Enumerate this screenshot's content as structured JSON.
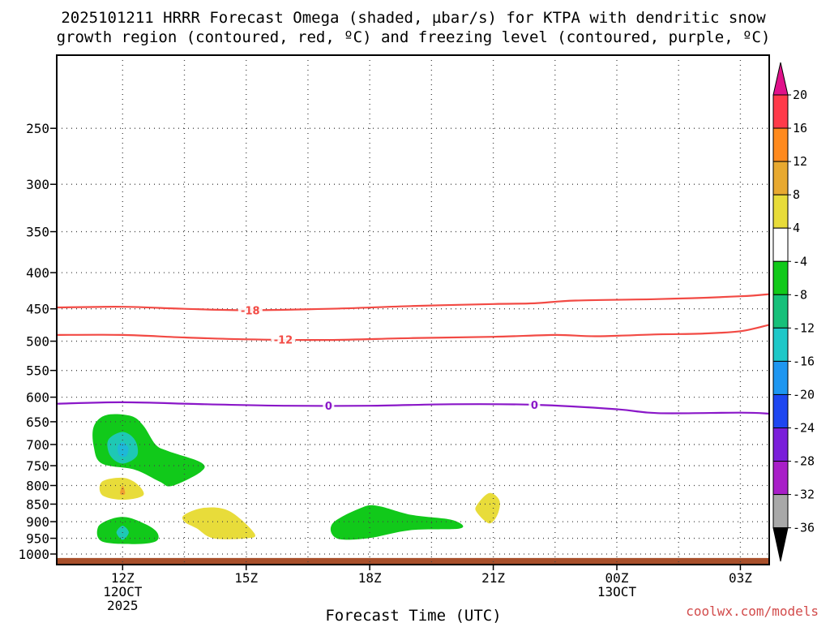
{
  "chart_data": {
    "type": "contour",
    "title_line1": "2025101211 HRRR Forecast Omega (shaded, µbar/s) for KTPA with dendritic snow",
    "title_line2": "growth region (contoured, red, ºC) and freezing level (contoured, purple, ºC)",
    "xlabel": "Forecast Time (UTC)",
    "credit": "coolwx.com/models",
    "x_unit": "hours since 12Z 12OCT",
    "xlim": [
      -1.6,
      15.7
    ],
    "ylim": [
      1035,
      197
    ],
    "y_ticks": [
      250,
      300,
      350,
      400,
      450,
      500,
      550,
      600,
      650,
      700,
      750,
      800,
      850,
      900,
      950,
      1000
    ],
    "x_ticks": [
      {
        "x": 0,
        "lines": [
          "12Z",
          "12OCT",
          "2025"
        ]
      },
      {
        "x": 3,
        "lines": [
          "15Z"
        ]
      },
      {
        "x": 6,
        "lines": [
          "18Z"
        ]
      },
      {
        "x": 9,
        "lines": [
          "21Z"
        ]
      },
      {
        "x": 12,
        "lines": [
          "00Z",
          "13OCT"
        ]
      },
      {
        "x": 15,
        "lines": [
          "03Z"
        ]
      }
    ],
    "colorbar": {
      "labels": [
        "20",
        "16",
        "12",
        "8",
        "4",
        "-4",
        "-8",
        "-12",
        "-16",
        "-20",
        "-24",
        "-28",
        "-32",
        "-36"
      ],
      "colors": [
        "#ff3a4a",
        "#ff8a1e",
        "#e8a930",
        "#e8dc3a",
        "#ffffff",
        "#11c91a",
        "#16c07a",
        "#1ec8c8",
        "#1e96f0",
        "#1e46f0",
        "#7a1eda",
        "#a81ec8",
        "#a8a8a8"
      ],
      "top_arrow_color": "#e0118a",
      "bottom_arrow_color": "#000000"
    },
    "contours": [
      {
        "name": "dgz-18",
        "label": "-18",
        "color": "#f24a44",
        "label_x": 3.1,
        "points": [
          [
            -1.6,
            448
          ],
          [
            0,
            447
          ],
          [
            1.5,
            450
          ],
          [
            3,
            452
          ],
          [
            5,
            450
          ],
          [
            7,
            446
          ],
          [
            9,
            443
          ],
          [
            10,
            442
          ],
          [
            11,
            438
          ],
          [
            13,
            436
          ],
          [
            15,
            432
          ],
          [
            15.7,
            429
          ]
        ]
      },
      {
        "name": "dgz-12",
        "label": "-12",
        "color": "#f24a44",
        "label_x": 3.9,
        "points": [
          [
            -1.6,
            490
          ],
          [
            0,
            490
          ],
          [
            1.5,
            494
          ],
          [
            3,
            497
          ],
          [
            5,
            498
          ],
          [
            7,
            495
          ],
          [
            9,
            493
          ],
          [
            10.5,
            490
          ],
          [
            11.5,
            492
          ],
          [
            13,
            489
          ],
          [
            14,
            488
          ],
          [
            15,
            484
          ],
          [
            15.7,
            474
          ]
        ]
      },
      {
        "name": "freezing-level",
        "label": "0",
        "color": "#8a17c8",
        "label_x": 5.0,
        "label_x2": 10.0,
        "points": [
          [
            -1.6,
            613
          ],
          [
            0,
            610
          ],
          [
            2,
            614
          ],
          [
            4,
            617
          ],
          [
            6,
            617
          ],
          [
            8,
            614
          ],
          [
            10,
            615
          ],
          [
            12,
            624
          ],
          [
            13,
            632
          ],
          [
            15,
            631
          ],
          [
            15.7,
            633
          ]
        ]
      }
    ],
    "omega_areas": [
      {
        "name": "green-upper",
        "value_range": "-8 to -4",
        "color": "#11c91a",
        "points": [
          [
            -0.7,
            660
          ],
          [
            -0.4,
            636
          ],
          [
            0.2,
            638
          ],
          [
            0.5,
            658
          ],
          [
            0.8,
            700
          ],
          [
            1.1,
            715
          ],
          [
            1.9,
            742
          ],
          [
            1.9,
            765
          ],
          [
            1.2,
            801
          ],
          [
            0.9,
            790
          ],
          [
            0.3,
            760
          ],
          [
            -0.5,
            745
          ],
          [
            -0.7,
            705
          ]
        ]
      },
      {
        "name": "teal-upper",
        "value_range": "-16 to -8",
        "color": "#1ec8b4",
        "points": [
          [
            -0.35,
            690
          ],
          [
            0,
            672
          ],
          [
            0.3,
            690
          ],
          [
            0.35,
            726
          ],
          [
            0,
            745
          ],
          [
            -0.3,
            726
          ]
        ]
      },
      {
        "name": "cyan-core-upper",
        "value_range": "-16 to -12",
        "color": "#1eb8d8",
        "points": [
          [
            -0.12,
            705
          ],
          [
            0,
            695
          ],
          [
            0.14,
            708
          ],
          [
            0.08,
            728
          ],
          [
            -0.08,
            725
          ]
        ]
      },
      {
        "name": "yellow-left",
        "value_range": "4 to 8",
        "color": "#e8dc3a",
        "points": [
          [
            -0.5,
            790
          ],
          [
            0,
            780
          ],
          [
            0.35,
            796
          ],
          [
            0.5,
            826
          ],
          [
            0,
            838
          ],
          [
            -0.5,
            825
          ]
        ]
      },
      {
        "name": "orange-tip",
        "value_range": "8 to 12",
        "color": "#f0a030",
        "points": [
          [
            -0.06,
            822
          ],
          [
            0,
            800
          ],
          [
            0.06,
            822
          ]
        ]
      },
      {
        "name": "green-lower",
        "value_range": "-8 to -4",
        "color": "#11c91a",
        "points": [
          [
            -0.6,
            917
          ],
          [
            -0.3,
            893
          ],
          [
            0.1,
            887
          ],
          [
            0.6,
            910
          ],
          [
            0.85,
            935
          ],
          [
            0.8,
            960
          ],
          [
            0.3,
            968
          ],
          [
            -0.5,
            960
          ]
        ]
      },
      {
        "name": "teal-lower",
        "value_range": "-16 to -8",
        "color": "#1ec8b4",
        "points": [
          [
            -0.15,
            932
          ],
          [
            0,
            912
          ],
          [
            0.15,
            932
          ],
          [
            0,
            955
          ]
        ]
      },
      {
        "name": "yellow-mid",
        "value_range": "4 to 8",
        "color": "#e8dc3a",
        "points": [
          [
            1.5,
            880
          ],
          [
            2,
            860
          ],
          [
            2.6,
            870
          ],
          [
            3.2,
            935
          ],
          [
            3,
            950
          ],
          [
            2.2,
            950
          ],
          [
            1.8,
            920
          ],
          [
            1.5,
            900
          ]
        ]
      },
      {
        "name": "green-18z",
        "value_range": "-8 to -4",
        "color": "#11c91a",
        "points": [
          [
            5.8,
            860
          ],
          [
            6.2,
            855
          ],
          [
            7,
            880
          ],
          [
            8,
            895
          ],
          [
            8.2,
            920
          ],
          [
            7,
            925
          ],
          [
            5.95,
            950
          ],
          [
            5.2,
            950
          ],
          [
            5.1,
            905
          ]
        ]
      },
      {
        "name": "yellow-21z",
        "value_range": "4 to 8",
        "color": "#e8dc3a",
        "points": [
          [
            8.6,
            853
          ],
          [
            8.9,
            820
          ],
          [
            9.15,
            840
          ],
          [
            9.1,
            880
          ],
          [
            8.9,
            905
          ],
          [
            8.6,
            873
          ]
        ]
      }
    ],
    "ground": {
      "color": "#a84f2a",
      "top_hpa": 1013
    }
  }
}
